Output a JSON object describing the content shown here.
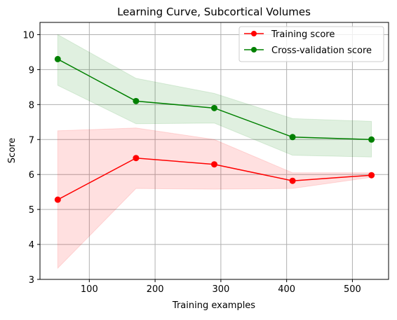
{
  "chart_data": {
    "type": "line",
    "title": "Learning Curve, Subcortical Volumes",
    "xlabel": "Training examples",
    "ylabel": "Score",
    "xlim": [
      25,
      555
    ],
    "ylim": [
      3,
      10.35
    ],
    "xticks": [
      100,
      200,
      300,
      400,
      500
    ],
    "yticks": [
      3,
      4,
      5,
      6,
      7,
      8,
      9,
      10
    ],
    "grid": true,
    "legend_position": "top-right",
    "x": [
      52,
      171,
      290,
      409,
      529
    ],
    "series": [
      {
        "name": "Training score",
        "color": "#ff0000",
        "values": [
          5.28,
          6.47,
          6.29,
          5.82,
          5.98
        ],
        "band_upper": [
          7.25,
          7.33,
          7.0,
          6.05,
          6.05
        ],
        "band_lower": [
          3.32,
          5.6,
          5.58,
          5.6,
          5.92
        ],
        "band_color": "#ff0000"
      },
      {
        "name": "Cross-validation score",
        "color": "#008000",
        "values": [
          9.3,
          8.1,
          7.9,
          7.07,
          7.0
        ],
        "band_upper": [
          10.0,
          8.75,
          8.32,
          7.6,
          7.52
        ],
        "band_lower": [
          8.55,
          7.45,
          7.47,
          6.55,
          6.5
        ],
        "band_color": "#008000"
      }
    ]
  }
}
